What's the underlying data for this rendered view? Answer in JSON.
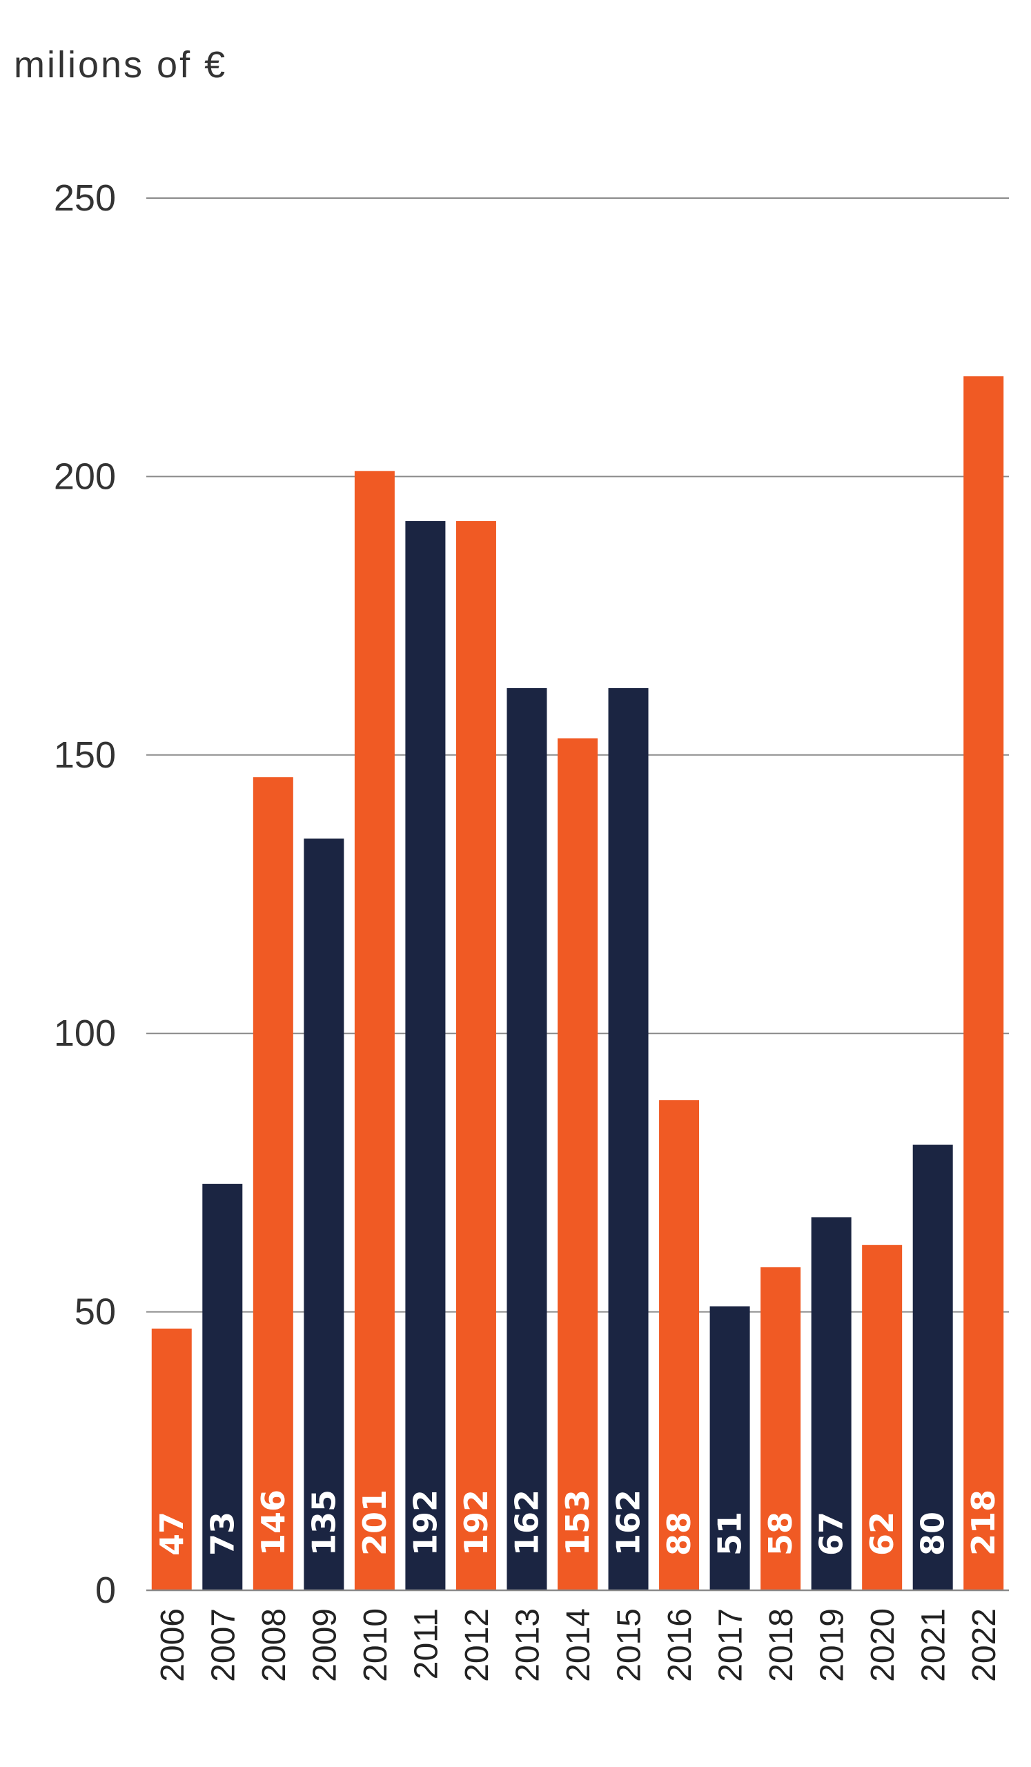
{
  "chart_data": {
    "type": "bar",
    "ylabel": "milions of €",
    "categories": [
      "2006",
      "2007",
      "2008",
      "2009",
      "2010",
      "2011",
      "2012",
      "2013",
      "2014",
      "2015",
      "2016",
      "2017",
      "2018",
      "2019",
      "2020",
      "2021",
      "2022"
    ],
    "values": [
      47,
      73,
      146,
      135,
      201,
      192,
      192,
      162,
      153,
      162,
      88,
      51,
      58,
      67,
      62,
      80,
      218
    ],
    "yticks": [
      0,
      50,
      100,
      150,
      200,
      250
    ],
    "ylim": [
      0,
      250
    ],
    "grid": true,
    "legend": "none",
    "colors": [
      "#F05A24",
      "#1B2542"
    ],
    "color_pattern": "alternating"
  }
}
